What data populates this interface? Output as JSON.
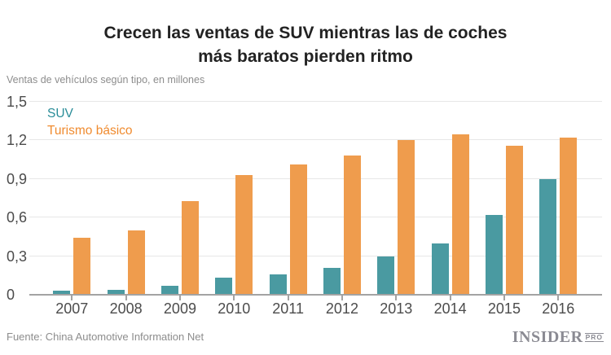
{
  "title": {
    "line1": "Crecen las ventas de SUV mientras las de coches",
    "line2": "más baratos pierden ritmo"
  },
  "subtitle": "Ventas de vehículos según tipo, en millones",
  "legend": [
    {
      "label": "SUV",
      "color": "#2A8D98"
    },
    {
      "label": "Turismo básico",
      "color": "#F08B2F"
    }
  ],
  "chart_data": {
    "type": "bar",
    "categories": [
      "2007",
      "2008",
      "2009",
      "2010",
      "2011",
      "2012",
      "2013",
      "2014",
      "2015",
      "2016"
    ],
    "series": [
      {
        "name": "SUV",
        "color": "#4A9AA1",
        "values": [
          0.03,
          0.04,
          0.07,
          0.13,
          0.16,
          0.21,
          0.3,
          0.4,
          0.62,
          0.9
        ]
      },
      {
        "name": "Turismo básico",
        "color": "#EF9C4D",
        "values": [
          0.44,
          0.5,
          0.73,
          0.93,
          1.01,
          1.08,
          1.2,
          1.25,
          1.16,
          1.22
        ]
      }
    ],
    "title": "Crecen las ventas de SUV mientras las de coches más baratos pierden ritmo",
    "xlabel": "",
    "ylabel": "Ventas de vehículos según tipo, en millones",
    "ylim": [
      0,
      1.5
    ],
    "ytick_values": [
      0,
      0.3,
      0.6,
      0.9,
      1.2,
      1.5
    ],
    "ytick_labels": [
      "0",
      "0,3",
      "0,6",
      "0,9",
      "1,2",
      "1,5"
    ],
    "grid": true,
    "legend_position": "top-left"
  },
  "footer": {
    "source": "Fuente: China Automotive Information Net",
    "brand": "INSIDER",
    "brand_suffix": "PRO"
  },
  "colors": {
    "background": "#FFFFFF",
    "title_text": "#222222",
    "muted_text": "#8D8D8D",
    "tick_label_text": "#4C4C4C",
    "gridline": "#E7E7E7",
    "axis_line": "#A3A3A3",
    "logo": "#8B8B93"
  }
}
